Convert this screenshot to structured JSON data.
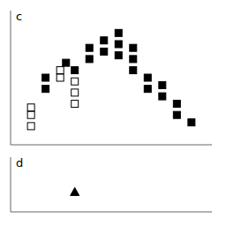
{
  "chart_data": [
    {
      "type": "scatter",
      "title": "c",
      "xlim": [
        3.3,
        10.2
      ],
      "ylim": [
        2.2,
        5.8
      ],
      "tick_labels": false,
      "series": [
        {
          "marker": "open_square",
          "color": "#000000",
          "x": [
            4.0,
            4.0,
            4.0,
            5.0,
            5.0,
            5.5,
            5.5,
            5.5
          ],
          "values": [
            3.2,
            3.0,
            2.7,
            4.2,
            4.0,
            3.9,
            3.6,
            3.3
          ]
        },
        {
          "marker": "square",
          "color": "#000000",
          "x": [
            4.5,
            4.5,
            5.2,
            5.5,
            6.0,
            6.0,
            6.5,
            6.5,
            7.0,
            7.0,
            7.0,
            7.5,
            7.5,
            7.5,
            8.0,
            8.0,
            8.5,
            8.5,
            9.0,
            9.0,
            9.5
          ],
          "values": [
            4.0,
            3.7,
            4.4,
            4.2,
            4.8,
            4.5,
            5.0,
            4.7,
            5.2,
            4.9,
            4.6,
            4.8,
            4.5,
            4.2,
            4.0,
            3.7,
            3.8,
            3.5,
            3.3,
            3.0,
            2.8
          ]
        }
      ]
    },
    {
      "type": "scatter",
      "title": "d",
      "xlim": [
        3.3,
        10.2
      ],
      "ylim": [
        -0.3,
        0.8
      ],
      "tick_labels": false,
      "series": [
        {
          "marker": "triangle",
          "color": "#000000",
          "x": [
            5.5
          ],
          "values": [
            0.1
          ]
        }
      ]
    }
  ]
}
